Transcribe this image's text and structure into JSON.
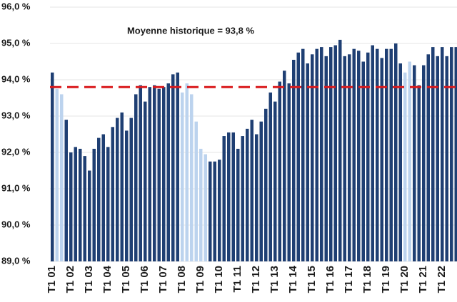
{
  "chart_data": {
    "type": "bar",
    "annotation": "Moyenne historique = 93,8 %",
    "reference": 93.8,
    "reference_color": "#d9191c",
    "categories": [
      "T1 01",
      null,
      null,
      null,
      "T1 02",
      null,
      null,
      null,
      "T1 03",
      null,
      null,
      null,
      "T1 04",
      null,
      null,
      null,
      "T1 05",
      null,
      null,
      null,
      "T1 06",
      null,
      null,
      null,
      "T1 07",
      null,
      null,
      null,
      "T1 08",
      null,
      null,
      null,
      "T1 09",
      null,
      null,
      null,
      "T1 10",
      null,
      null,
      null,
      "T1 11",
      null,
      null,
      null,
      "T1 12",
      null,
      null,
      null,
      "T1 13",
      null,
      null,
      null,
      "T1 14",
      null,
      null,
      null,
      "T1 15",
      null,
      null,
      null,
      "T1 16",
      null,
      null,
      null,
      "T1 17",
      null,
      null,
      null,
      "T1 18",
      null,
      null,
      null,
      "T1 19",
      null,
      null,
      null,
      "T1 20",
      null,
      null,
      null,
      "T1 21",
      null,
      null,
      null,
      "T1 22",
      null,
      null,
      null
    ],
    "values": [
      94.2,
      93.75,
      93.6,
      92.9,
      92.0,
      92.15,
      92.1,
      91.9,
      91.5,
      92.1,
      92.4,
      92.5,
      92.15,
      92.7,
      92.95,
      93.1,
      92.6,
      92.95,
      93.6,
      93.85,
      93.4,
      93.8,
      93.85,
      93.75,
      93.8,
      93.9,
      94.15,
      94.2,
      93.65,
      93.9,
      93.6,
      92.85,
      92.1,
      91.95,
      91.75,
      91.75,
      91.8,
      92.45,
      92.55,
      92.55,
      92.1,
      92.45,
      92.65,
      92.9,
      92.5,
      92.85,
      93.2,
      93.65,
      93.4,
      93.95,
      94.25,
      93.9,
      94.55,
      94.75,
      94.85,
      94.45,
      94.7,
      94.85,
      94.9,
      94.65,
      94.9,
      94.95,
      95.1,
      94.65,
      94.7,
      94.85,
      94.8,
      94.5,
      94.75,
      94.95,
      94.85,
      94.6,
      94.85,
      94.85,
      95.0,
      94.45,
      94.2,
      94.5,
      94.4,
      93.85,
      94.4,
      94.7,
      94.9,
      94.65,
      94.9,
      94.65,
      94.9,
      94.9
    ],
    "colors": [
      "#1f3f73",
      "#bcd3ee",
      "#bcd3ee",
      "#1f3f73",
      "#1f3f73",
      "#1f3f73",
      "#1f3f73",
      "#1f3f73",
      "#1f3f73",
      "#1f3f73",
      "#1f3f73",
      "#1f3f73",
      "#1f3f73",
      "#1f3f73",
      "#1f3f73",
      "#1f3f73",
      "#1f3f73",
      "#1f3f73",
      "#1f3f73",
      "#1f3f73",
      "#1f3f73",
      "#1f3f73",
      "#1f3f73",
      "#1f3f73",
      "#1f3f73",
      "#1f3f73",
      "#1f3f73",
      "#1f3f73",
      "#bcd3ee",
      "#bcd3ee",
      "#bcd3ee",
      "#bcd3ee",
      "#bcd3ee",
      "#bcd3ee",
      "#1f3f73",
      "#1f3f73",
      "#1f3f73",
      "#1f3f73",
      "#1f3f73",
      "#1f3f73",
      "#1f3f73",
      "#1f3f73",
      "#1f3f73",
      "#1f3f73",
      "#1f3f73",
      "#1f3f73",
      "#1f3f73",
      "#1f3f73",
      "#1f3f73",
      "#1f3f73",
      "#1f3f73",
      "#1f3f73",
      "#1f3f73",
      "#1f3f73",
      "#1f3f73",
      "#1f3f73",
      "#1f3f73",
      "#1f3f73",
      "#1f3f73",
      "#1f3f73",
      "#1f3f73",
      "#1f3f73",
      "#1f3f73",
      "#1f3f73",
      "#1f3f73",
      "#1f3f73",
      "#1f3f73",
      "#1f3f73",
      "#1f3f73",
      "#1f3f73",
      "#1f3f73",
      "#1f3f73",
      "#1f3f73",
      "#1f3f73",
      "#1f3f73",
      "#1f3f73",
      "#bcd3ee",
      "#bcd3ee",
      "#1f3f73",
      "#1f3f73",
      "#1f3f73",
      "#1f3f73",
      "#1f3f73",
      "#1f3f73",
      "#1f3f73",
      "#1f3f73",
      "#1f3f73",
      "#1f3f73"
    ],
    "ylim": [
      89,
      96
    ],
    "yticks": [
      {
        "value": 89,
        "label": "89,0 %"
      },
      {
        "value": 90,
        "label": "90,0 %"
      },
      {
        "value": 91,
        "label": "91,0 %"
      },
      {
        "value": 92,
        "label": "92,0 %"
      },
      {
        "value": 93,
        "label": "93,0 %"
      },
      {
        "value": 94,
        "label": "94,0 %"
      },
      {
        "value": 95,
        "label": "95,0 %"
      },
      {
        "value": 96,
        "label": "96,0 %"
      }
    ],
    "grid": true
  }
}
